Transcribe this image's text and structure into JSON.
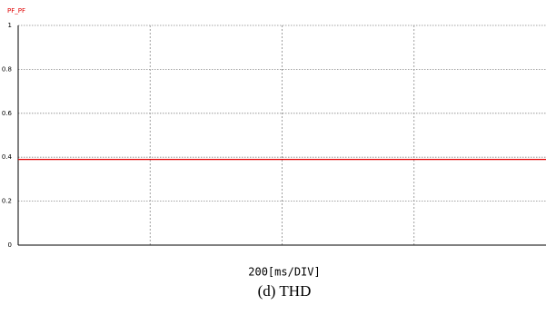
{
  "chart_data": {
    "type": "line",
    "legend": "PF_PF",
    "x_label": "200[ms/DIV]",
    "caption": "(d)  THD",
    "categories": [
      null,
      null
    ],
    "series": [
      {
        "name": "PF_PF",
        "color": "#e00000",
        "values": [
          0.39,
          0.39
        ]
      }
    ],
    "ylim": [
      0,
      1
    ],
    "yticks": [
      0,
      0.2,
      0.4,
      0.6,
      0.8,
      1
    ],
    "grid": true
  }
}
